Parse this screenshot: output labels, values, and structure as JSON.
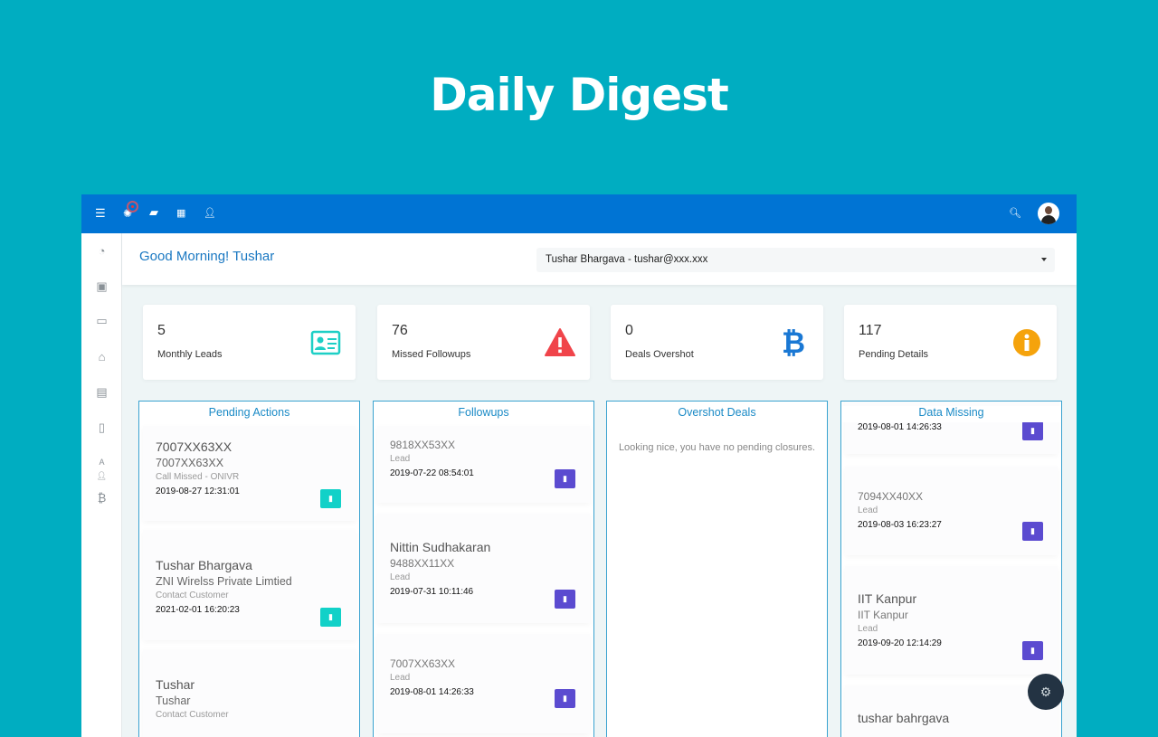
{
  "banner_title": "Daily Digest",
  "topbar": {
    "icons": [
      "menu-icon",
      "sun-icon",
      "chat-icon",
      "grid-icon",
      "user-icon"
    ],
    "right_icons": [
      "search-icon",
      "avatar"
    ]
  },
  "sidebar": {
    "icons": [
      "dashboard-icon",
      "contacts-icon",
      "monitor-icon",
      "bank-icon",
      "message-icon",
      "mobile-icon",
      "translate-user-icon",
      "bitcoin-icon"
    ]
  },
  "header": {
    "greeting": "Good Morning! Tushar",
    "user_select": "Tushar Bhargava - tushar@xxx.xxx"
  },
  "stats": [
    {
      "value": "5",
      "label": "Monthly Leads",
      "icon": "id-card-icon",
      "color": "#1ecfc6"
    },
    {
      "value": "76",
      "label": "Missed Followups",
      "icon": "warning-icon",
      "color": "#f0444a"
    },
    {
      "value": "0",
      "label": "Deals Overshot",
      "icon": "bitcoin-icon",
      "color": "#1a78d4"
    },
    {
      "value": "117",
      "label": "Pending Details",
      "icon": "info-icon",
      "color": "#f5a30c"
    }
  ],
  "columns": {
    "pending": {
      "title": "Pending Actions",
      "items": [
        {
          "name": "7007XX63XX",
          "sub": "7007XX63XX",
          "type": "Call Missed - ONIVR",
          "date": "2019-08-27 12:31:01"
        },
        {
          "name": "Tushar Bhargava",
          "sub": "ZNI Wirelss Private Limtied",
          "type": "Contact Customer",
          "date": "2021-02-01 16:20:23"
        },
        {
          "name": "Tushar",
          "sub": "Tushar",
          "type": "Contact Customer",
          "date": ""
        }
      ]
    },
    "followups": {
      "title": "Followups",
      "items": [
        {
          "name": "",
          "sub": "9818XX53XX",
          "type": "Lead",
          "date": "2019-07-22 08:54:01"
        },
        {
          "name": "Nittin Sudhakaran",
          "sub": "9488XX11XX",
          "type": "Lead",
          "date": "2019-07-31 10:11:46"
        },
        {
          "name": "",
          "sub": "7007XX63XX",
          "type": "Lead",
          "date": "2019-08-01 14:26:33"
        }
      ]
    },
    "overshot": {
      "title": "Overshot Deals",
      "empty": "Looking nice, you have no pending closures."
    },
    "missing": {
      "title": "Data Missing",
      "items": [
        {
          "date": "2019-08-01 14:26:33"
        },
        {
          "sub": "7094XX40XX",
          "type": "Lead",
          "date": "2019-08-03 16:23:27"
        },
        {
          "name": "IIT Kanpur",
          "sub": "IIT Kanpur",
          "type": "Lead",
          "date": "2019-09-20 12:14:29"
        },
        {
          "name": "tushar bahrgava"
        }
      ]
    }
  },
  "fab_icon": "settings-icon"
}
